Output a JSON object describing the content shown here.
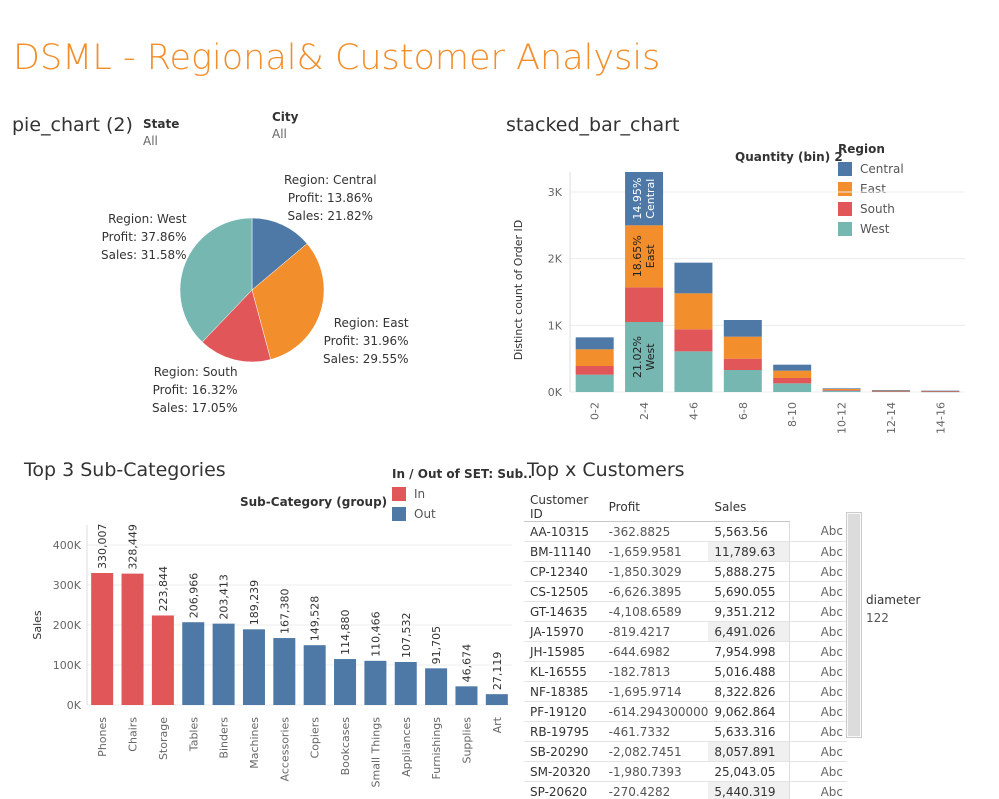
{
  "dashboard": {
    "title": "DSML - Regional& Customer Analysis"
  },
  "pie_section": {
    "title": "pie_chart (2)",
    "filters": [
      {
        "label": "State",
        "value": "All"
      },
      {
        "label": "City",
        "value": "All"
      }
    ],
    "labels": {
      "central": [
        "Region: Central",
        "Profit: 13.86%",
        "Sales: 21.82%"
      ],
      "east": [
        "Region: East",
        "Profit: 31.96%",
        "Sales: 29.55%"
      ],
      "south": [
        "Region: South",
        "Profit: 16.32%",
        "Sales: 17.05%"
      ],
      "west": [
        "Region: West",
        "Profit: 37.86%",
        "Sales: 31.58%"
      ]
    }
  },
  "stacked_section": {
    "title": "stacked_bar_chart",
    "header": "Quantity (bin) 2",
    "legend_title": "Region",
    "legend": [
      "Central",
      "East",
      "South",
      "West"
    ]
  },
  "top3_section": {
    "title": "Top 3 Sub-Categories",
    "legend_title": "In / Out of SET: Sub..",
    "legend": [
      "In",
      "Out"
    ]
  },
  "customers_section": {
    "title": "Top x Customers",
    "columns": [
      "Customer ID",
      "Profit",
      "Sales"
    ],
    "rows": [
      [
        "AA-10315",
        "-362.8825",
        "5,563.56",
        "Abc"
      ],
      [
        "BM-11140",
        "-1,659.9581",
        "11,789.63",
        "Abc"
      ],
      [
        "CP-12340",
        "-1,850.3029",
        "5,888.275",
        "Abc"
      ],
      [
        "CS-12505",
        "-6,626.3895",
        "5,690.055",
        "Abc"
      ],
      [
        "GT-14635",
        "-4,108.6589",
        "9,351.212",
        "Abc"
      ],
      [
        "JA-15970",
        "-819.4217",
        "6,491.026",
        "Abc"
      ],
      [
        "JH-15985",
        "-644.6982",
        "7,954.998",
        "Abc"
      ],
      [
        "KL-16555",
        "-182.7813",
        "5,016.488",
        "Abc"
      ],
      [
        "NF-18385",
        "-1,695.9714",
        "8,322.826",
        "Abc"
      ],
      [
        "PF-19120",
        "-614.294300000",
        "9,062.864",
        "Abc"
      ],
      [
        "RB-19795",
        "-461.7332",
        "5,633.316",
        "Abc"
      ],
      [
        "SB-20290",
        "-2,082.7451",
        "8,057.891",
        "Abc"
      ],
      [
        "SM-20320",
        "-1,980.7393",
        "25,043.05",
        "Abc"
      ],
      [
        "SP-20620",
        "-270.4282",
        "5,440.319",
        "Abc"
      ]
    ],
    "parameter": {
      "label": "diameter",
      "value": "122"
    }
  },
  "colors": {
    "central": "#4e79a7",
    "east": "#f28e2b",
    "south": "#e15759",
    "west": "#76b7b2",
    "accent": "#f28e2b"
  },
  "chart_data": [
    {
      "type": "pie",
      "categories": [
        "Central",
        "East",
        "South",
        "West"
      ],
      "values": [
        13.86,
        31.96,
        16.32,
        37.86
      ]
    },
    {
      "type": "bar",
      "stacked": true,
      "xlabel": "",
      "ylabel": "Distinct count of Order ID",
      "yticks": [
        "0K",
        "1K",
        "2K",
        "3K"
      ],
      "ylim": [
        0,
        3300
      ],
      "categories": [
        "0-2",
        "2-4",
        "4-6",
        "6-8",
        "8-10",
        "10-12",
        "12-14",
        "14-16"
      ],
      "series": [
        {
          "name": "West",
          "values": [
            260,
            1050,
            610,
            330,
            130,
            20,
            10,
            6
          ]
        },
        {
          "name": "South",
          "values": [
            130,
            520,
            330,
            170,
            80,
            10,
            5,
            4
          ]
        },
        {
          "name": "East",
          "values": [
            250,
            930,
            540,
            330,
            110,
            15,
            8,
            6
          ]
        },
        {
          "name": "Central",
          "values": [
            180,
            800,
            460,
            250,
            90,
            10,
            5,
            4
          ]
        }
      ],
      "mark_labels": [
        {
          "category": "2-4",
          "series": "Central",
          "text": [
            "14.95%",
            "Central"
          ]
        },
        {
          "category": "2-4",
          "series": "East",
          "text": [
            "18.65%",
            "East"
          ]
        },
        {
          "category": "2-4",
          "series": "West",
          "text": [
            "21.02%",
            "West"
          ]
        }
      ]
    },
    {
      "type": "bar",
      "header": "Sub-Category (group)",
      "ylabel": "Sales",
      "yticks": [
        "0K",
        "100K",
        "200K",
        "300K",
        "400K"
      ],
      "ylim": [
        0,
        450000
      ],
      "categories": [
        "Phones",
        "Chairs",
        "Storage",
        "Tables",
        "Binders",
        "Machines",
        "Accessories",
        "Copiers",
        "Bookcases",
        "Small Things",
        "Appliances",
        "Furnishings",
        "Supplies",
        "Art"
      ],
      "values": [
        330007,
        328449,
        223844,
        206966,
        203413,
        189239,
        167380,
        149528,
        114880,
        110466,
        107532,
        91705,
        46674,
        27119
      ],
      "data_labels": [
        "330,007",
        "328,449",
        "223,844",
        "206,966",
        "203,413",
        "189,239",
        "167,380",
        "149,528",
        "114,880",
        "110,466",
        "107,532",
        "91,705",
        "46,674",
        "27,119"
      ],
      "set": [
        "In",
        "In",
        "In",
        "Out",
        "Out",
        "Out",
        "Out",
        "Out",
        "Out",
        "Out",
        "Out",
        "Out",
        "Out",
        "Out"
      ]
    }
  ]
}
